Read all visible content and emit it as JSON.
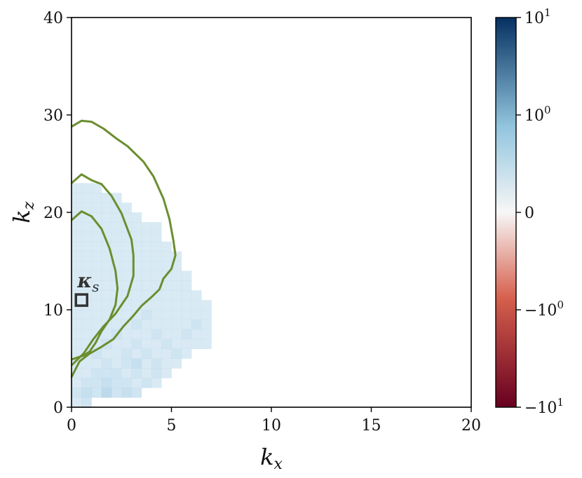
{
  "chart_data": {
    "type": "heatmap",
    "xlabel": "k_x",
    "ylabel": "k_z",
    "xlim": [
      0,
      20
    ],
    "ylim": [
      0,
      40
    ],
    "x_ticks": [
      "0",
      "5",
      "10",
      "15",
      "20"
    ],
    "y_ticks": [
      "0",
      "10",
      "20",
      "30",
      "40"
    ],
    "grid": false,
    "colorbar": {
      "scale": "symlog",
      "range": [
        -10,
        10
      ],
      "tick_labels": [
        {
          "base": "10",
          "exp": "1",
          "value": 10
        },
        {
          "base": "10",
          "exp": "0",
          "value": 1
        },
        {
          "base": "0",
          "exp": "",
          "value": 0
        },
        {
          "base": "−10",
          "exp": "0",
          "value": -1
        },
        {
          "base": "−10",
          "exp": "1",
          "value": -10
        }
      ],
      "colormap": "RdBu",
      "colors": [
        "#67001f",
        "#d6604d",
        "#f7f7f7",
        "#92c5de",
        "#053061"
      ]
    },
    "heatmap": {
      "cell_dx": 0.5,
      "cell_dz": 1,
      "rows": [
        {
          "z": 1,
          "x_max": 1.0,
          "values": [
            0.2,
            0.3
          ]
        },
        {
          "z": 2,
          "x_max": 3.5,
          "values": [
            0.3,
            0.4,
            0.3,
            0.5,
            0.3,
            0.4,
            0.3
          ]
        },
        {
          "z": 3,
          "x_max": 4.5,
          "values": [
            0.2,
            0.3,
            0.3,
            0.4,
            0.3,
            0.3,
            0.2,
            0.3,
            0.2
          ]
        },
        {
          "z": 4,
          "x_max": 5.0,
          "values": [
            0.2,
            0.2,
            0.3,
            0.3,
            0.3,
            0.2,
            0.3,
            0.2,
            0.3,
            0.2
          ]
        },
        {
          "z": 5,
          "x_max": 5.5,
          "values": [
            0.2,
            0.2,
            0.2,
            0.3,
            0.2,
            0.3,
            0.4,
            0.2,
            0.3,
            0.2,
            0.2
          ]
        },
        {
          "z": 6,
          "x_max": 6.0,
          "values": [
            0.2,
            0.2,
            0.3,
            0.2,
            0.2,
            0.3,
            0.2,
            0.3,
            0.2,
            0.2,
            0.3,
            0.2
          ]
        },
        {
          "z": 7,
          "x_max": 7.0,
          "values": [
            0.2,
            0.2,
            0.2,
            0.3,
            0.2,
            0.2,
            0.3,
            0.2,
            0.2,
            0.3,
            0.2,
            0.2,
            0.2,
            0.2
          ]
        },
        {
          "z": 8,
          "x_max": 7.0,
          "values": [
            0.2,
            0.2,
            0.2,
            0.2,
            0.3,
            0.2,
            0.2,
            0.2,
            0.3,
            0.2,
            0.2,
            0.3,
            0.2,
            0.2
          ]
        },
        {
          "z": 9,
          "x_max": 7.2,
          "values": [
            0.2,
            0.2,
            0.2,
            0.2,
            0.2,
            0.2,
            0.3,
            0.2,
            0.2,
            0.2,
            0.2,
            0.2,
            0.3,
            0.2
          ]
        },
        {
          "z": 10,
          "x_max": 7.2,
          "values": [
            0.2,
            0.2,
            0.2,
            0.2,
            0.2,
            0.2,
            0.2,
            0.3,
            0.2,
            0.2,
            0.2,
            0.2,
            0.2,
            0.2
          ]
        },
        {
          "z": 11,
          "x_max": 7.0,
          "values": [
            0.2,
            0.2,
            0.2,
            0.2,
            0.2,
            0.2,
            0.2,
            0.2,
            0.2,
            0.2,
            0.2,
            0.2,
            0.2,
            0.2
          ]
        },
        {
          "z": 12,
          "x_max": 6.5,
          "values": [
            0.2,
            0.2,
            0.2,
            0.2,
            0.2,
            0.2,
            0.2,
            0.2,
            0.2,
            0.2,
            0.2,
            0.2,
            0.2
          ]
        },
        {
          "z": 13,
          "x_max": 6.0,
          "values": [
            0.2,
            0.2,
            0.2,
            0.2,
            0.2,
            0.2,
            0.2,
            0.2,
            0.2,
            0.2,
            0.2,
            0.2
          ]
        },
        {
          "z": 14,
          "x_max": 6.0,
          "values": [
            0.2,
            0.2,
            0.2,
            0.2,
            0.2,
            0.2,
            0.2,
            0.2,
            0.2,
            0.2,
            0.2,
            0.2
          ]
        },
        {
          "z": 15,
          "x_max": 5.5,
          "values": [
            0.2,
            0.2,
            0.2,
            0.2,
            0.2,
            0.2,
            0.2,
            0.2,
            0.2,
            0.2,
            0.2
          ]
        },
        {
          "z": 16,
          "x_max": 5.5,
          "values": [
            0.2,
            0.2,
            0.2,
            0.2,
            0.2,
            0.2,
            0.2,
            0.2,
            0.2,
            0.2,
            0.2
          ]
        },
        {
          "z": 17,
          "x_max": 5.0,
          "values": [
            0.2,
            0.2,
            0.2,
            0.2,
            0.2,
            0.2,
            0.2,
            0.2,
            0.2,
            0.2
          ]
        },
        {
          "z": 18,
          "x_max": 4.5,
          "values": [
            0.2,
            0.2,
            0.2,
            0.2,
            0.2,
            0.2,
            0.2,
            0.2,
            0.2
          ]
        },
        {
          "z": 19,
          "x_max": 4.5,
          "values": [
            0.2,
            0.2,
            0.2,
            0.2,
            0.2,
            0.2,
            0.2,
            0.2,
            0.2
          ]
        },
        {
          "z": 20,
          "x_max": 3.5,
          "values": [
            0.2,
            0.2,
            0.2,
            0.2,
            0.2,
            0.2,
            0.2
          ]
        },
        {
          "z": 21,
          "x_max": 3.0,
          "values": [
            0.2,
            0.2,
            0.2,
            0.2,
            0.2,
            0.2
          ]
        },
        {
          "z": 22,
          "x_max": 2.5,
          "values": [
            0.2,
            0.2,
            0.2,
            0.2,
            0.2
          ]
        },
        {
          "z": 23,
          "x_max": 1.5,
          "values": [
            0.2,
            0.2,
            0.2
          ]
        }
      ]
    },
    "contours": {
      "color": "#6b8e2f",
      "lines": [
        [
          [
            0,
            19.2
          ],
          [
            0.5,
            20.1
          ],
          [
            1.0,
            19.6
          ],
          [
            1.5,
            18.3
          ],
          [
            1.9,
            16.3
          ],
          [
            2.2,
            14.0
          ],
          [
            2.3,
            12.2
          ],
          [
            2.2,
            10.5
          ],
          [
            1.9,
            9.0
          ],
          [
            1.5,
            7.8
          ],
          [
            1.2,
            6.6
          ],
          [
            0.9,
            5.7
          ],
          [
            0.6,
            5.3
          ],
          [
            0,
            4.9
          ]
        ],
        [
          [
            0,
            23.0
          ],
          [
            0.5,
            23.9
          ],
          [
            1.0,
            23.3
          ],
          [
            1.5,
            22.9
          ],
          [
            2.0,
            21.7
          ],
          [
            2.5,
            19.9
          ],
          [
            3.0,
            17.2
          ],
          [
            3.1,
            15.6
          ],
          [
            3.1,
            13.5
          ],
          [
            2.8,
            11.4
          ],
          [
            2.2,
            9.6
          ],
          [
            1.6,
            8.3
          ],
          [
            1.1,
            7.0
          ],
          [
            0.6,
            5.5
          ],
          [
            0.3,
            4.9
          ],
          [
            0,
            4.3
          ]
        ],
        [
          [
            0,
            28.8
          ],
          [
            0.5,
            29.4
          ],
          [
            1.0,
            29.3
          ],
          [
            1.6,
            28.6
          ],
          [
            2.3,
            27.5
          ],
          [
            2.8,
            26.8
          ],
          [
            3.6,
            25.2
          ],
          [
            4.1,
            23.7
          ],
          [
            4.6,
            21.4
          ],
          [
            4.9,
            19.3
          ],
          [
            5.1,
            17.1
          ],
          [
            5.2,
            15.6
          ],
          [
            5.0,
            14.2
          ],
          [
            4.6,
            13.2
          ],
          [
            4.4,
            12.1
          ],
          [
            4.0,
            11.3
          ],
          [
            3.5,
            10.4
          ],
          [
            3.1,
            9.4
          ],
          [
            2.6,
            8.3
          ],
          [
            2.1,
            7.0
          ],
          [
            1.5,
            6.2
          ],
          [
            0.9,
            5.5
          ],
          [
            0.4,
            4.7
          ],
          [
            0,
            3.1
          ]
        ]
      ]
    },
    "annotation": {
      "base": "κ",
      "sub": "s",
      "x": 0.5,
      "z": 11
    }
  }
}
